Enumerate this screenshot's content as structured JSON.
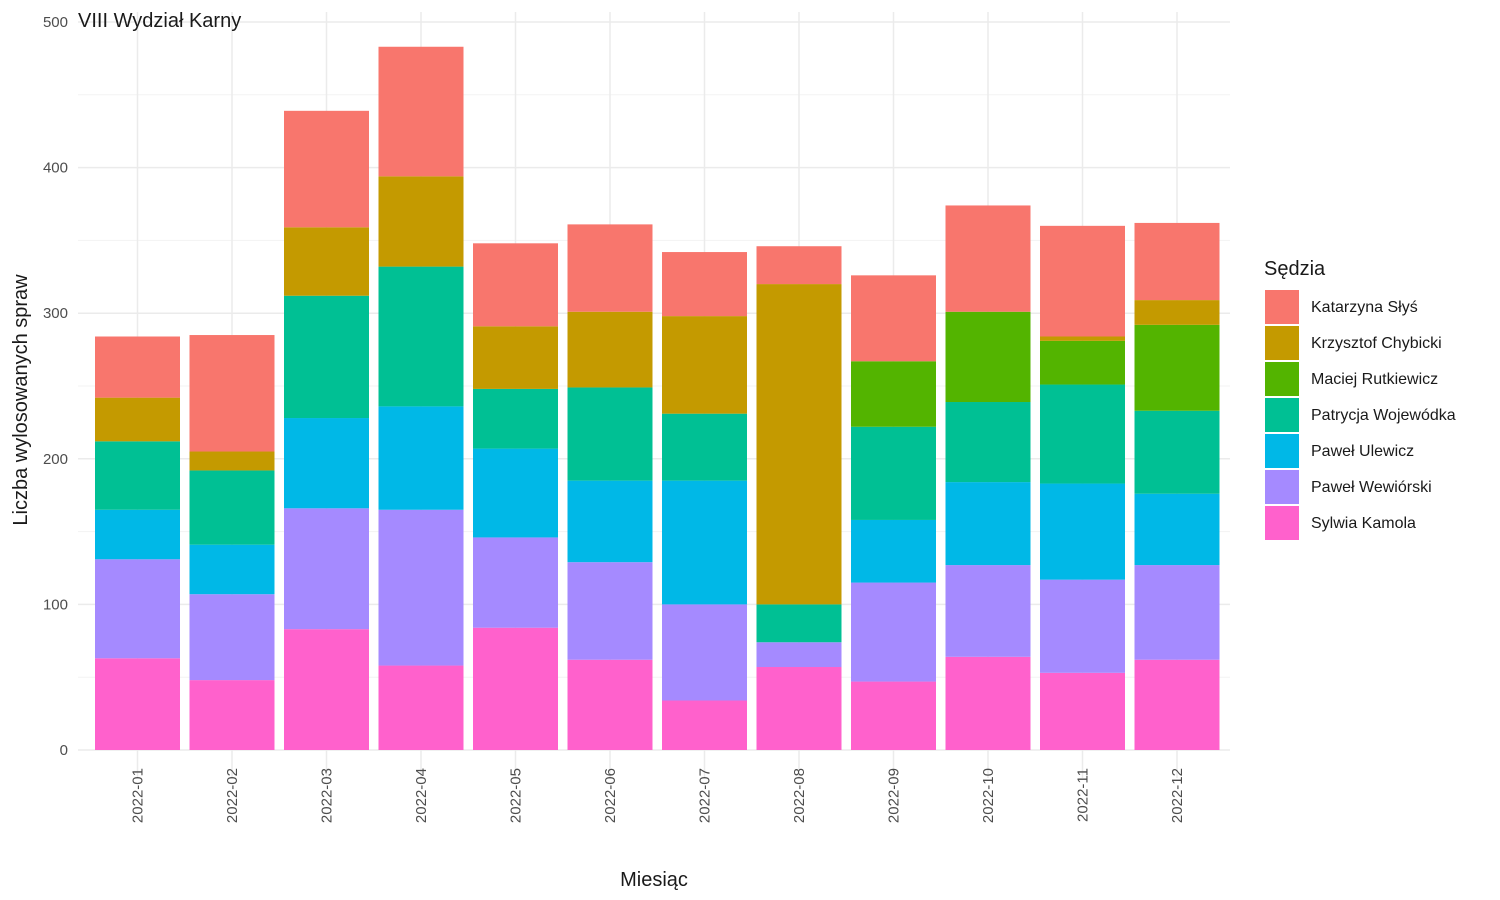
{
  "chart_data": {
    "type": "bar",
    "stacked": true,
    "title": "VIII Wydział Karny",
    "xlabel": "Miesiąc",
    "ylabel": "Liczba wylosowanych spraw",
    "ylim": [
      0,
      500
    ],
    "yticks": [
      0,
      100,
      200,
      300,
      400,
      500
    ],
    "grid": true,
    "legend_title": "Sędzia",
    "legend_position": "right",
    "categories": [
      "2022-01",
      "2022-02",
      "2022-03",
      "2022-04",
      "2022-05",
      "2022-06",
      "2022-07",
      "2022-08",
      "2022-09",
      "2022-10",
      "2022-11",
      "2022-12"
    ],
    "series": [
      {
        "name": "Sylwia Kamola",
        "color": "#FF61CC",
        "values": [
          63,
          48,
          83,
          58,
          84,
          62,
          34,
          57,
          47,
          64,
          53,
          62
        ]
      },
      {
        "name": "Paweł Wewiórski",
        "color": "#A58AFF",
        "values": [
          68,
          59,
          83,
          107,
          62,
          67,
          66,
          17,
          68,
          63,
          64,
          65
        ]
      },
      {
        "name": "Paweł Ulewicz",
        "color": "#00B8E7",
        "values": [
          34,
          34,
          62,
          71,
          61,
          56,
          85,
          0,
          43,
          57,
          66,
          49
        ]
      },
      {
        "name": "Patrycja Wojewódka",
        "color": "#00C094",
        "values": [
          47,
          51,
          84,
          96,
          41,
          64,
          46,
          26,
          64,
          55,
          68,
          57
        ]
      },
      {
        "name": "Maciej Rutkiewicz",
        "color": "#53B400",
        "values": [
          0,
          0,
          0,
          0,
          0,
          0,
          0,
          0,
          45,
          62,
          30,
          59
        ]
      },
      {
        "name": "Krzysztof Chybicki",
        "color": "#C49A00",
        "values": [
          30,
          13,
          47,
          62,
          43,
          52,
          67,
          220,
          0,
          0,
          3,
          17
        ]
      },
      {
        "name": "Katarzyna Słyś",
        "color": "#F8766D",
        "values": [
          42,
          80,
          80,
          89,
          57,
          60,
          44,
          26,
          59,
          73,
          76,
          53
        ]
      }
    ]
  }
}
